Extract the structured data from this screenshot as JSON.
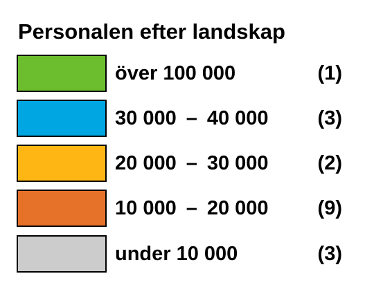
{
  "legend": {
    "title": "Personalen efter landskap",
    "items": [
      {
        "from": "över 100 000",
        "to": "",
        "count": "(1)",
        "color": "#6cbe2f"
      },
      {
        "from": "30 000",
        "to": "40 000",
        "count": "(3)",
        "color": "#00a6e2"
      },
      {
        "from": "20 000",
        "to": "30 000",
        "count": "(2)",
        "color": "#fdb614"
      },
      {
        "from": "10 000",
        "to": "20 000",
        "count": "(9)",
        "color": "#e6722a"
      },
      {
        "from": "under 10 000",
        "to": "",
        "count": "(3)",
        "color": "#cccccc"
      }
    ],
    "separator": "–"
  }
}
